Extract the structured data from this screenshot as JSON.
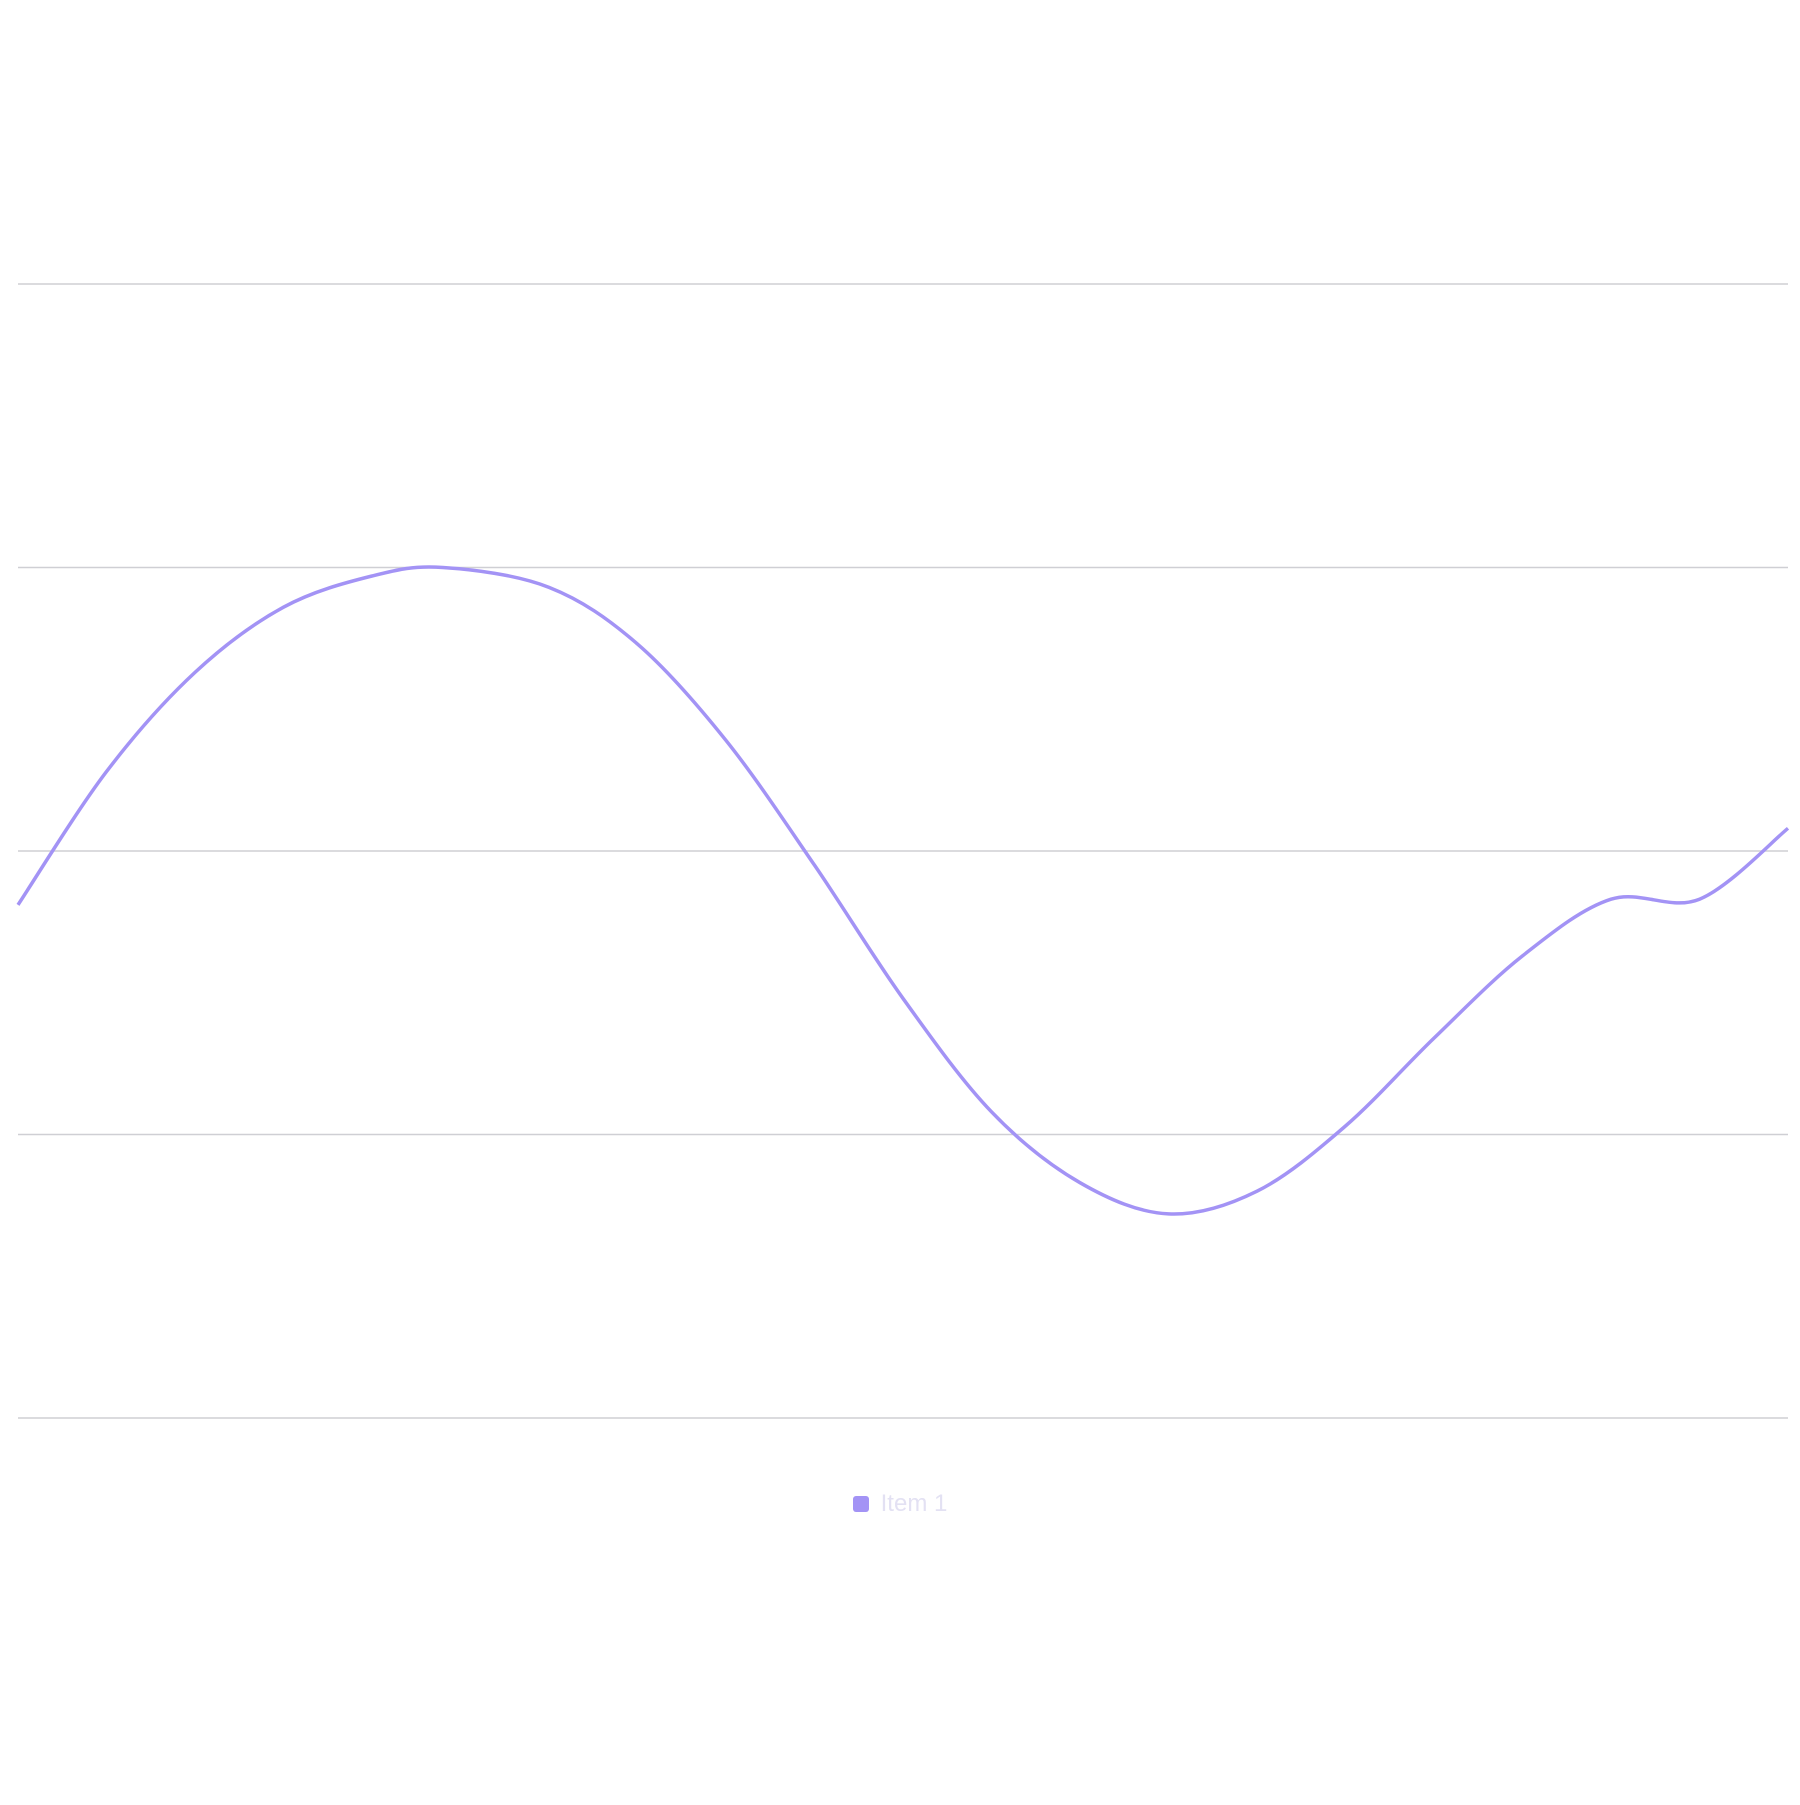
{
  "chart_data": {
    "type": "line",
    "title": "",
    "xlabel": "",
    "ylabel": "",
    "ylim": [
      -200,
      200
    ],
    "grid": true,
    "grid_lines": [
      200,
      100,
      0,
      -100,
      -200
    ],
    "legend": "bottom-center",
    "x": [
      0,
      0.05,
      0.1,
      0.15,
      0.2,
      0.24,
      0.3,
      0.35,
      0.4,
      0.45,
      0.5,
      0.55,
      0.6,
      0.65,
      0.7,
      0.75,
      0.8,
      0.85,
      0.9,
      0.95,
      1.0
    ],
    "series": [
      {
        "name": "Item 1",
        "color": "#a393f5",
        "values": [
          -19,
          28,
          63,
          86,
          97,
          100,
          93,
          73,
          39,
          -5,
          -52,
          -92,
          -117,
          -128,
          -120,
          -97,
          -66,
          -37,
          -17,
          -17,
          8
        ]
      }
    ]
  }
}
